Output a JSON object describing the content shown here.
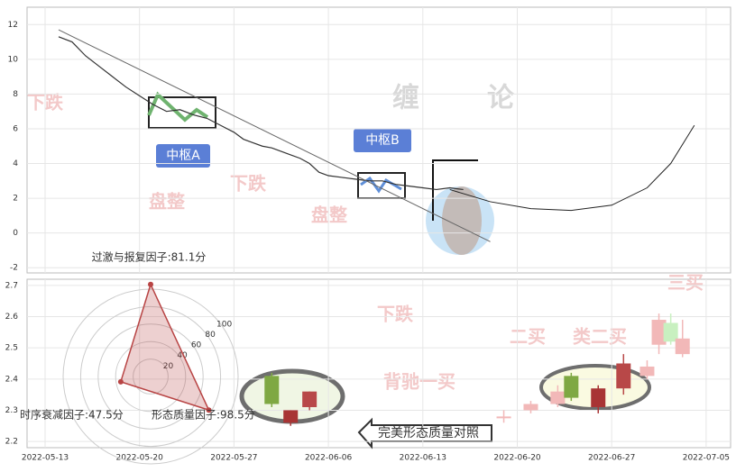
{
  "chart_data": [
    {
      "type": "line",
      "xticks": [
        "2022-05-13",
        "2022-05-20",
        "2022-05-27",
        "2022-06-06",
        "2022-06-13",
        "2022-06-20",
        "2022-06-27",
        "2022-07-05"
      ],
      "ylim": [
        -2.3,
        13
      ],
      "yticks": [
        -2,
        0,
        2,
        4,
        6,
        8,
        10,
        12
      ],
      "grid": true,
      "series": [
        {
          "name": "price",
          "color": "#333333",
          "x": [
            "2022-05-14",
            "2022-05-15",
            "2022-05-16",
            "2022-05-17",
            "2022-05-18",
            "2022-05-19",
            "2022-05-20",
            "2022-05-21",
            "2022-05-22",
            "2022-05-23",
            "2022-05-24",
            "2022-05-25",
            "2022-05-26",
            "2022-05-27",
            "2022-05-28",
            "2022-05-29",
            "2022-05-30",
            "2022-05-31",
            "2022-06-01",
            "2022-06-02",
            "2022-06-03",
            "2022-06-04",
            "2022-06-05",
            "2022-06-06",
            "2022-06-07",
            "2022-06-08",
            "2022-06-09",
            "2022-06-10",
            "2022-06-11",
            "2022-06-12",
            "2022-06-13",
            "2022-06-14",
            "2022-06-15",
            "2022-06-16"
          ],
          "values": [
            11.3,
            11.0,
            10.2,
            9.6,
            9.0,
            8.4,
            7.9,
            7.4,
            7.0,
            7.1,
            6.8,
            6.6,
            6.2,
            5.8,
            5.4,
            5.2,
            5.0,
            4.9,
            4.7,
            4.5,
            4.3,
            4.0,
            3.5,
            3.3,
            3.2,
            3.1,
            3.0,
            3.0,
            2.8,
            2.7,
            2.6,
            2.5,
            2.6,
            2.5
          ]
        },
        {
          "name": "trend",
          "color": "#666666",
          "x": [
            "2022-05-14",
            "2022-06-18"
          ],
          "values": [
            11.7,
            -0.5
          ]
        },
        {
          "name": "forecast",
          "color": "#222222",
          "x": [
            "2022-06-15",
            "2022-06-18",
            "2022-06-21",
            "2022-06-24",
            "2022-06-27",
            "2022-06-30",
            "2022-07-02",
            "2022-07-04"
          ],
          "values": [
            2.5,
            1.8,
            1.4,
            1.3,
            1.6,
            2.6,
            4.0,
            6.2
          ]
        }
      ],
      "annotations": [
        "中枢A",
        "中枢B"
      ],
      "watermarks": [
        "缠",
        "论",
        "下跌",
        "盘整",
        "下跌",
        "盘整",
        "下跌",
        "二买",
        "类二买",
        "三买",
        "背驰一买"
      ]
    },
    {
      "type": "candlestick",
      "ylim": [
        2.18,
        2.72
      ],
      "yticks": [
        2.2,
        2.3,
        2.4,
        2.5,
        2.6,
        2.7
      ],
      "grid": true,
      "candles": [
        {
          "x": "2022-05-31",
          "open": 2.32,
          "high": 2.42,
          "low": 2.31,
          "close": 2.41,
          "color": "#7fa843"
        },
        {
          "x": "2022-06-02",
          "open": 2.3,
          "high": 2.3,
          "low": 2.25,
          "close": 2.26,
          "color": "#a83434"
        },
        {
          "x": "2022-06-04",
          "open": 2.36,
          "high": 2.36,
          "low": 2.3,
          "close": 2.31,
          "color": "#b84848"
        },
        {
          "x": "2022-06-19",
          "open": 2.28,
          "high": 2.3,
          "low": 2.26,
          "close": 2.28,
          "color": "#f2b8b8"
        },
        {
          "x": "2022-06-21",
          "open": 2.32,
          "high": 2.33,
          "low": 2.29,
          "close": 2.3,
          "color": "#f2b8b8"
        },
        {
          "x": "2022-06-23",
          "open": 2.36,
          "high": 2.38,
          "low": 2.31,
          "close": 2.32,
          "color": "#f2b8b8"
        },
        {
          "x": "2022-06-24",
          "open": 2.34,
          "high": 2.42,
          "low": 2.33,
          "close": 2.41,
          "color": "#7fa843"
        },
        {
          "x": "2022-06-26",
          "open": 2.37,
          "high": 2.38,
          "low": 2.29,
          "close": 2.31,
          "color": "#a83434"
        },
        {
          "x": "2022-06-28",
          "open": 2.45,
          "high": 2.48,
          "low": 2.35,
          "close": 2.37,
          "color": "#b84848"
        },
        {
          "x": "2022-06-30",
          "open": 2.44,
          "high": 2.46,
          "low": 2.4,
          "close": 2.41,
          "color": "#f2b8b8"
        },
        {
          "x": "2022-07-01",
          "open": 2.59,
          "high": 2.61,
          "low": 2.48,
          "close": 2.51,
          "color": "#f2b8b8"
        },
        {
          "x": "2022-07-02",
          "open": 2.52,
          "high": 2.61,
          "low": 2.51,
          "close": 2.58,
          "color": "#c8f0c0"
        },
        {
          "x": "2022-07-03",
          "open": 2.53,
          "high": 2.59,
          "low": 2.47,
          "close": 2.48,
          "color": "#f2b8b8"
        }
      ],
      "button": "完美形态质量对照"
    },
    {
      "type": "radar",
      "rlim": [
        0,
        100
      ],
      "rticks": [
        20,
        40,
        60,
        80,
        100
      ],
      "color": "#b84444",
      "axes": [
        {
          "label": "过激与报复因子:81.1分",
          "value": 81.1
        },
        {
          "label": "时序衰减因子:47.5分",
          "value": 47.5
        },
        {
          "label": "形态质量因子:98.5分",
          "value": 98.5
        }
      ]
    }
  ]
}
